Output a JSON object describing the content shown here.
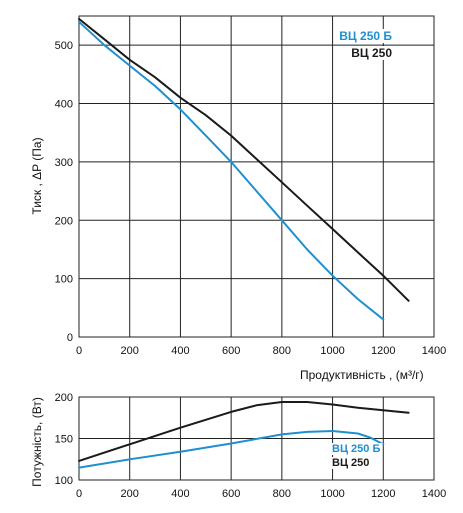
{
  "colors": {
    "blue_series": "#1f8fd0",
    "black_series": "#1a1a1a",
    "grid": "#222222",
    "text": "#111111"
  },
  "chart_data": [
    {
      "type": "line",
      "xlabel": "Продуктивність , (м³/г)",
      "ylabel": "Тиск , ΔP (Па)",
      "xlim": [
        0,
        1400
      ],
      "ylim": [
        0,
        550
      ],
      "x_ticks": [
        0,
        200,
        400,
        600,
        800,
        1000,
        1200,
        1400
      ],
      "y_ticks": [
        0,
        100,
        200,
        300,
        400,
        500
      ],
      "grid": true,
      "legend_position": "top-right",
      "series": [
        {
          "name": "ВЦ 250 Б",
          "color": "#1f8fd0",
          "points": [
            [
              0,
              540
            ],
            [
              100,
              500
            ],
            [
              200,
              465
            ],
            [
              300,
              430
            ],
            [
              400,
              390
            ],
            [
              500,
              345
            ],
            [
              600,
              300
            ],
            [
              700,
              250
            ],
            [
              800,
              200
            ],
            [
              900,
              150
            ],
            [
              1000,
              105
            ],
            [
              1100,
              65
            ],
            [
              1200,
              30
            ]
          ]
        },
        {
          "name": "ВЦ 250",
          "color": "#1a1a1a",
          "points": [
            [
              0,
              545
            ],
            [
              100,
              510
            ],
            [
              200,
              475
            ],
            [
              300,
              445
            ],
            [
              400,
              410
            ],
            [
              500,
              380
            ],
            [
              600,
              345
            ],
            [
              700,
              305
            ],
            [
              800,
              265
            ],
            [
              900,
              225
            ],
            [
              1000,
              185
            ],
            [
              1100,
              145
            ],
            [
              1200,
              105
            ],
            [
              1300,
              62
            ]
          ]
        }
      ]
    },
    {
      "type": "line",
      "xlabel": "",
      "ylabel": "Потужність, (Вт)",
      "xlim": [
        0,
        1400
      ],
      "ylim": [
        100,
        200
      ],
      "x_ticks": [
        0,
        200,
        400,
        600,
        800,
        1000,
        1200,
        1400
      ],
      "y_ticks": [
        100,
        150,
        200
      ],
      "grid": true,
      "legend_position": "bottom-right",
      "series": [
        {
          "name": "ВЦ 250 Б",
          "color": "#1f8fd0",
          "points": [
            [
              0,
              115
            ],
            [
              200,
              125
            ],
            [
              400,
              134
            ],
            [
              600,
              144
            ],
            [
              800,
              155
            ],
            [
              900,
              158
            ],
            [
              1000,
              159
            ],
            [
              1100,
              156
            ],
            [
              1150,
              151
            ],
            [
              1200,
              143
            ]
          ]
        },
        {
          "name": "ВЦ 250",
          "color": "#1a1a1a",
          "points": [
            [
              0,
              123
            ],
            [
              200,
              143
            ],
            [
              400,
              163
            ],
            [
              600,
              182
            ],
            [
              700,
              190
            ],
            [
              800,
              194
            ],
            [
              900,
              194
            ],
            [
              1000,
              191
            ],
            [
              1100,
              187
            ],
            [
              1200,
              184
            ],
            [
              1300,
              181
            ]
          ]
        }
      ]
    }
  ]
}
